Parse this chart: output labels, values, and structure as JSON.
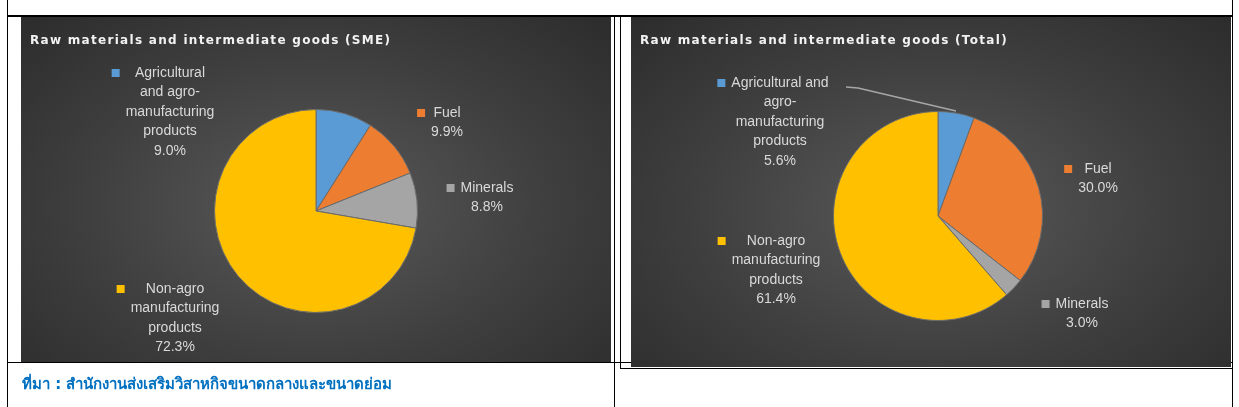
{
  "chart_data": [
    {
      "type": "pie",
      "title": "Raw materials and intermediate goods (SME)",
      "categories": [
        "Agricultural and agro-manufacturing products",
        "Fuel",
        "Minerals",
        "Non-agro manufacturing products"
      ],
      "values": [
        9.0,
        9.9,
        8.8,
        72.3
      ],
      "colors": [
        "#5b9bd5",
        "#ed7d31",
        "#a5a5a5",
        "#ffc000"
      ],
      "value_labels": [
        "9.0%",
        "9.9%",
        "8.8%",
        "72.3%"
      ],
      "legend": "right",
      "annotations": [
        "ที่มา : สำนักงานส่งเสริมวิสาหกิจขนาดกลางและขนาดย่อม"
      ]
    },
    {
      "type": "pie",
      "title": "Raw materials and intermediate goods (Total)",
      "categories": [
        "Agricultural and agro-manufacturing products",
        "Fuel",
        "Minerals",
        "Non-agro manufacturing products"
      ],
      "values": [
        5.6,
        30.0,
        3.0,
        61.4
      ],
      "colors": [
        "#5b9bd5",
        "#ed7d31",
        "#a5a5a5",
        "#ffc000"
      ],
      "value_labels": [
        "5.6%",
        "30.0%",
        "3.0%",
        "61.4%"
      ],
      "legend": "top left"
    }
  ]
}
